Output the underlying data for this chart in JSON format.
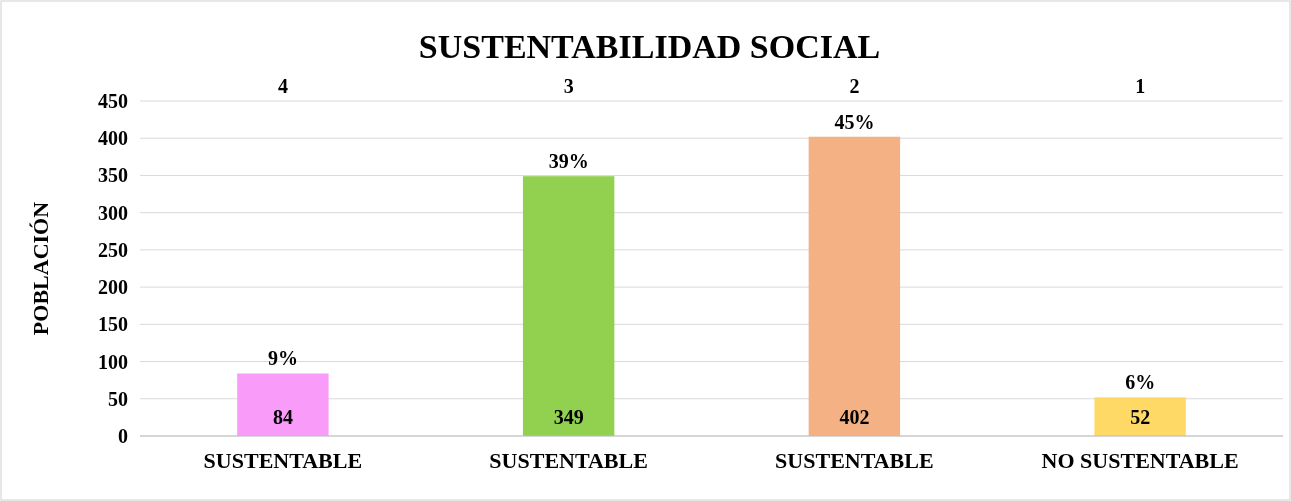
{
  "chart_data": {
    "type": "bar",
    "title": "SUSTENTABILIDAD SOCIAL",
    "ylabel": "POBLACIÓN",
    "categories": [
      "SUSTENTABLE",
      "SUSTENTABLE",
      "SUSTENTABLE",
      "NO SUSTENTABLE"
    ],
    "values": [
      84,
      349,
      402,
      52
    ],
    "colors": [
      "#f99cf9",
      "#92d050",
      "#f4b183",
      "#ffd966"
    ],
    "ylim": [
      0,
      450
    ],
    "yticks": [
      0,
      50,
      100,
      150,
      200,
      250,
      300,
      350,
      400,
      450
    ],
    "grid": "y",
    "data_labels": true,
    "annotations": [
      "4",
      "3",
      "2",
      "1",
      {
        "text": "9%",
        "y": 84
      },
      {
        "text": "39%",
        "y": 349
      },
      {
        "text": "45%",
        "y": 402
      },
      {
        "text": "6%",
        "y": 52
      }
    ]
  }
}
